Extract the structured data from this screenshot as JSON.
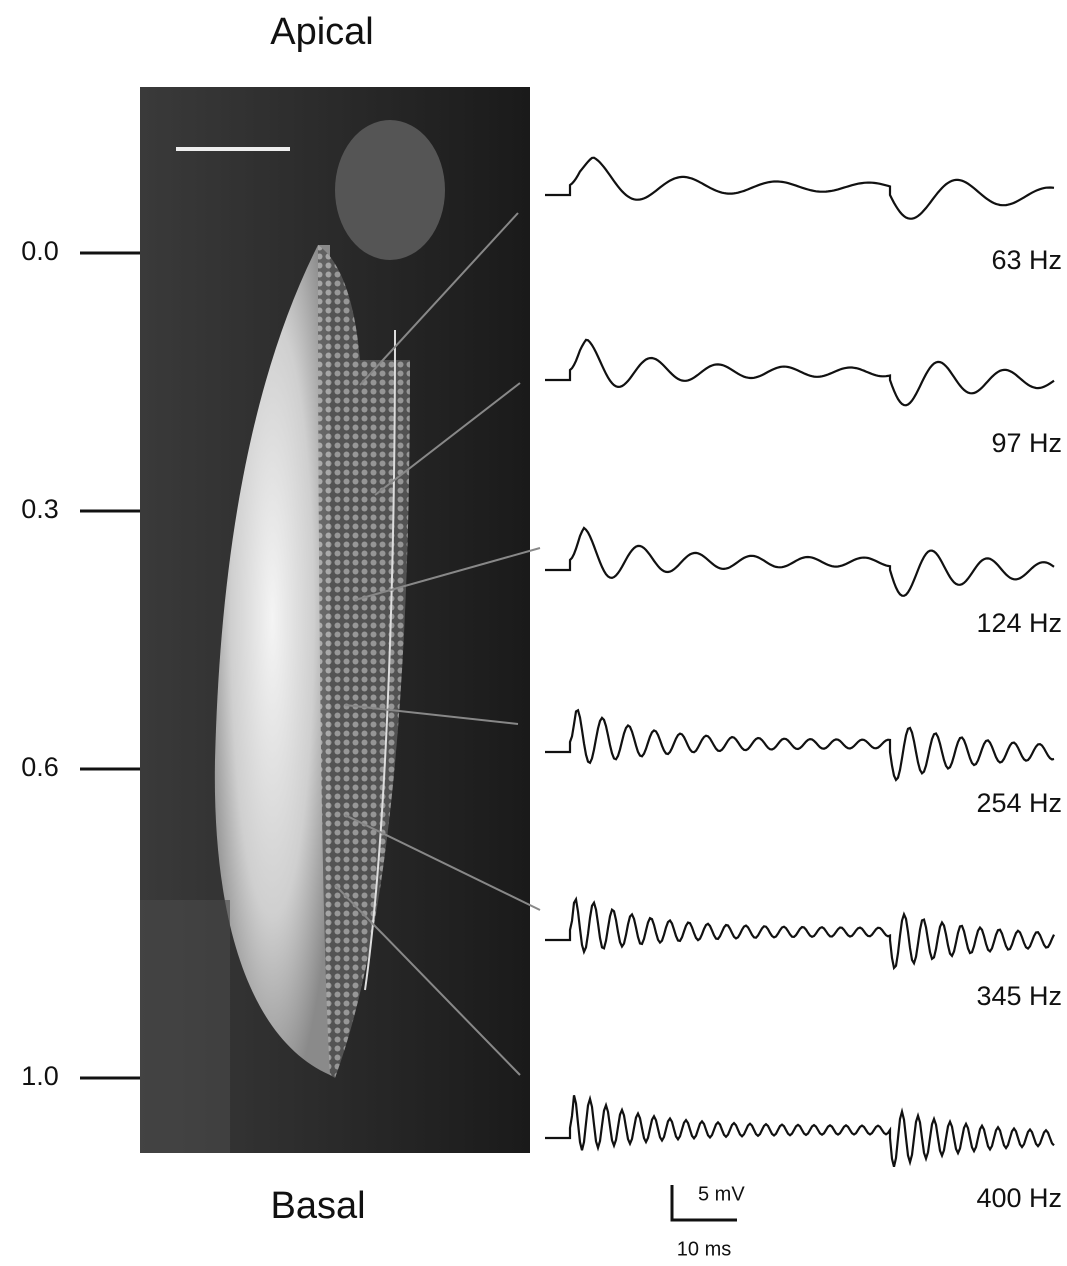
{
  "figure": {
    "top_label": "Apical",
    "bottom_label": "Basal",
    "positions": [
      "0.0",
      "0.3",
      "0.6",
      "1.0"
    ],
    "traces": [
      {
        "label": "63 Hz"
      },
      {
        "label": "97 Hz"
      },
      {
        "label": "124 Hz"
      },
      {
        "label": "254 Hz"
      },
      {
        "label": "345 Hz"
      },
      {
        "label": "400 Hz"
      }
    ],
    "scale_bar": {
      "voltage": "5 mV",
      "time": "10 ms"
    }
  }
}
